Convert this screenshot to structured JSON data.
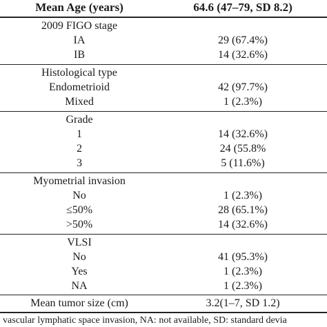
{
  "header": {
    "left": "Mean Age (years)",
    "right": "64.6 (47–79, SD 8.2)"
  },
  "sections": [
    {
      "title": "2009 FIGO stage",
      "rows": [
        {
          "label": "IA",
          "value": "29 (67.4%)"
        },
        {
          "label": "IB",
          "value": "14 (32.6%)"
        }
      ]
    },
    {
      "title": "Histological type",
      "rows": [
        {
          "label": "Endometrioid",
          "value": "42 (97.7%)"
        },
        {
          "label": "Mixed",
          "value": "1 (2.3%)"
        }
      ]
    },
    {
      "title": "Grade",
      "rows": [
        {
          "label": "1",
          "value": "14 (32.6%)"
        },
        {
          "label": "2",
          "value": "24 (55.8%"
        },
        {
          "label": "3",
          "value": "5 (11.6%)"
        }
      ]
    },
    {
      "title": "Myometrial invasion",
      "rows": [
        {
          "label": "No",
          "value": "1 (2.3%)"
        },
        {
          "label": "≤50%",
          "value": "28 (65.1%)"
        },
        {
          "label": ">50%",
          "value": "14 (32.6%)"
        }
      ]
    },
    {
      "title": "VLSI",
      "rows": [
        {
          "label": "No",
          "value": "41 (95.3%)"
        },
        {
          "label": "Yes",
          "value": "1 (2.3%)"
        },
        {
          "label": "NA",
          "value": "1 (2.3%)"
        }
      ]
    }
  ],
  "summary": {
    "label": "Mean tumor size (cm)",
    "value": "3.2(1–7, SD 1.2)"
  },
  "footnote": "I: vascular lymphatic space invasion, NA: not available, SD: standard devia"
}
